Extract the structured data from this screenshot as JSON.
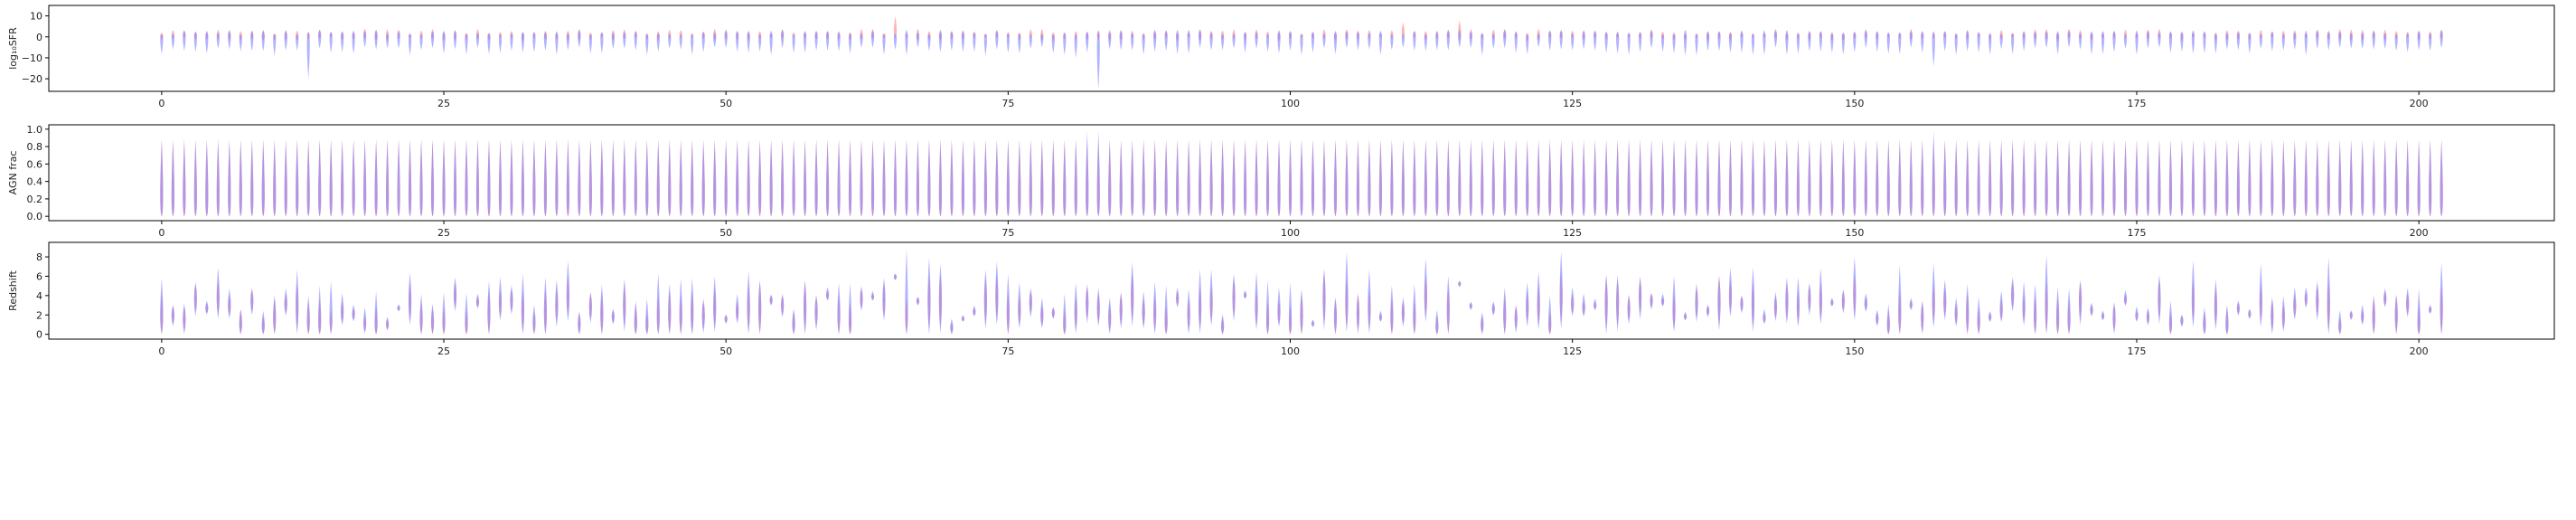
{
  "chart_data": [
    {
      "type": "violin",
      "ylabel": "log₁₀SFR",
      "xlim": [
        -10,
        212
      ],
      "ylim": [
        -26,
        15
      ],
      "xticks": [
        0,
        25,
        50,
        75,
        100,
        125,
        150,
        175,
        200
      ],
      "yticks": [
        -20,
        -10,
        0,
        10
      ],
      "n_violins": 203,
      "series": [
        {
          "name": "",
          "color": "#8080ff",
          "typical_min": -9,
          "typical_max": 2
        },
        {
          "name": "",
          "color": "#ff8080",
          "typical_min": -2,
          "typical_max": 4
        }
      ],
      "outliers": [
        {
          "x": 13,
          "min": -20,
          "max": -13
        },
        {
          "x": 81,
          "min": -10,
          "max": -6
        },
        {
          "x": 83,
          "min": -25,
          "max": -18
        },
        {
          "x": 157,
          "min": -14,
          "max": -10
        }
      ],
      "peaks": [
        {
          "x": 65,
          "max": 10
        },
        {
          "x": 110,
          "max": 7
        },
        {
          "x": 115,
          "max": 8
        }
      ]
    },
    {
      "type": "violin",
      "ylabel": "AGN frac",
      "xlim": [
        -10,
        212
      ],
      "ylim": [
        -0.05,
        1.05
      ],
      "xticks": [
        0,
        25,
        50,
        75,
        100,
        125,
        150,
        175,
        200
      ],
      "yticks": [
        0.0,
        0.2,
        0.4,
        0.6,
        0.8,
        1.0
      ],
      "n_violins": 203,
      "series": [
        {
          "name": "",
          "color": "#8080ff",
          "typical_min": 0.0,
          "typical_max": 0.88
        },
        {
          "name": "",
          "color": "#ff8080",
          "typical_min": 0.0,
          "typical_max": 0.88
        }
      ],
      "peaks": [
        {
          "x": 82,
          "max": 0.98
        },
        {
          "x": 83,
          "max": 0.98
        },
        {
          "x": 157,
          "max": 0.98
        }
      ]
    },
    {
      "type": "violin",
      "ylabel": "Redshift",
      "xlim": [
        -10,
        212
      ],
      "ylim": [
        -0.5,
        9.5
      ],
      "xticks": [
        0,
        25,
        50,
        75,
        100,
        125,
        150,
        175,
        200
      ],
      "yticks": [
        0,
        2,
        4,
        6,
        8
      ],
      "n_violins": 203,
      "series": [
        {
          "name": "",
          "color": "#8080ff"
        },
        {
          "name": "",
          "color": "#ff8080"
        }
      ]
    }
  ]
}
